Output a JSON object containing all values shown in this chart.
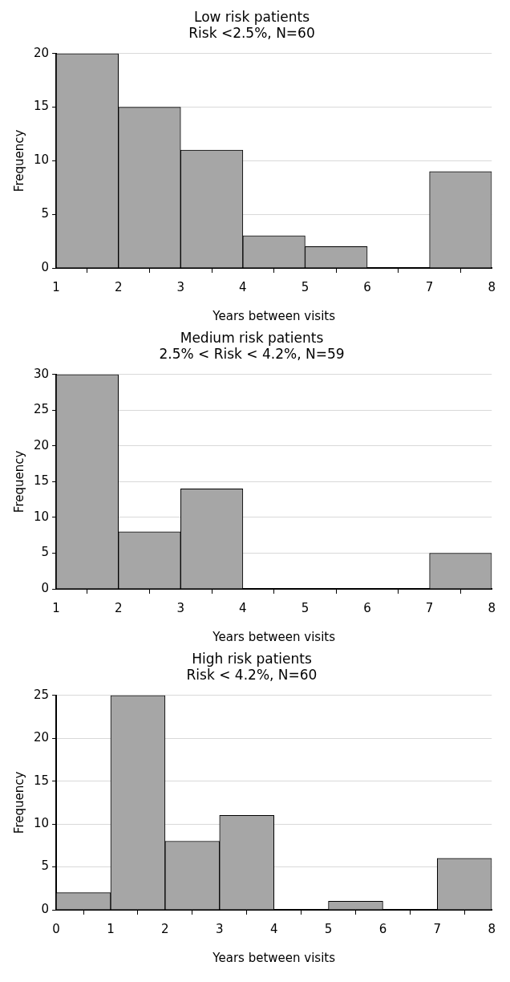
{
  "chart_data": [
    {
      "type": "histogram",
      "title": "Low risk patients",
      "subtitle": "Risk <2.5%, N=60",
      "xlabel": "Years between visits",
      "ylabel": "Frequency",
      "bins": [
        1,
        2,
        3,
        4,
        5,
        6,
        7,
        8
      ],
      "values": [
        20,
        15,
        11,
        3,
        2,
        0,
        9
      ],
      "color": "#a6a6a6",
      "xlim": [
        1,
        8
      ],
      "xticks": [
        1,
        2,
        3,
        4,
        5,
        6,
        7,
        8
      ],
      "ylim": [
        0,
        20
      ],
      "yticks": [
        0,
        5,
        10,
        15,
        20
      ],
      "grid": "y",
      "legend": false
    },
    {
      "type": "histogram",
      "title": "Medium risk patients",
      "subtitle": "2.5% < Risk < 4.2%, N=59",
      "xlabel": "Years between visits",
      "ylabel": "Frequency",
      "bins": [
        1,
        2,
        3,
        4,
        5,
        6,
        7,
        8
      ],
      "values": [
        30,
        8,
        14,
        0,
        0,
        0,
        5
      ],
      "color": "#a6a6a6",
      "xlim": [
        1,
        8
      ],
      "xticks": [
        1,
        2,
        3,
        4,
        5,
        6,
        7,
        8
      ],
      "ylim": [
        0,
        30
      ],
      "yticks": [
        0,
        5,
        10,
        15,
        20,
        25,
        30
      ],
      "grid": "y",
      "legend": false
    },
    {
      "type": "histogram",
      "title": "High risk patients",
      "subtitle": "Risk < 4.2%, N=60",
      "xlabel": "Years between visits",
      "ylabel": "Frequency",
      "bins": [
        0,
        1,
        2,
        3,
        4,
        5,
        6,
        7,
        8
      ],
      "values": [
        2,
        25,
        8,
        11,
        0,
        1,
        0,
        6
      ],
      "color": "#a6a6a6",
      "xlim": [
        0,
        8
      ],
      "xticks": [
        0,
        1,
        2,
        3,
        4,
        5,
        6,
        7,
        8
      ],
      "ylim": [
        0,
        25
      ],
      "yticks": [
        0,
        5,
        10,
        15,
        20,
        25
      ],
      "grid": "y",
      "legend": false
    }
  ]
}
